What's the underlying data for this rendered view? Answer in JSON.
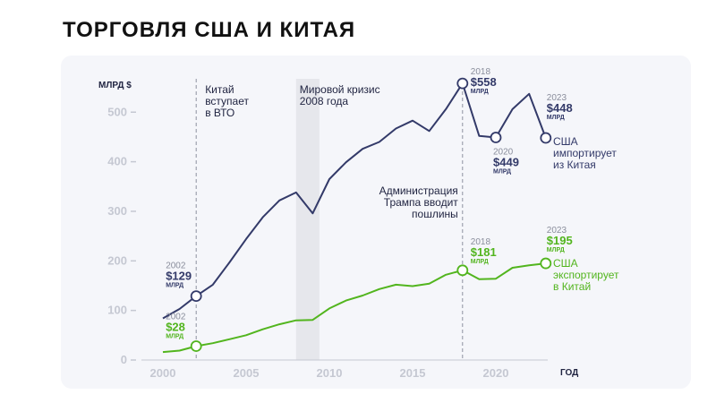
{
  "page_title": "ТОРГОВЛЯ США И КИТАЯ",
  "chart_data": {
    "type": "line",
    "title": "ТОРГОВЛЯ США И КИТАЯ",
    "ylabel": "МЛРД $",
    "xlabel": "ГОД",
    "xlim": [
      1999,
      2024
    ],
    "ylim": [
      0,
      560
    ],
    "yticks": [
      0,
      100,
      200,
      300,
      400,
      500
    ],
    "xticks": [
      2000,
      2005,
      2010,
      2015,
      2020
    ],
    "grid": false,
    "series": [
      {
        "name": "США импортирует из Китая",
        "color": "#333a69",
        "x": [
          2000,
          2001,
          2002,
          2003,
          2004,
          2005,
          2006,
          2007,
          2008,
          2009,
          2010,
          2011,
          2012,
          2013,
          2014,
          2015,
          2016,
          2017,
          2018,
          2019,
          2020,
          2021,
          2022,
          2023
        ],
        "values": [
          84,
          103,
          129,
          152,
          197,
          244,
          288,
          322,
          338,
          296,
          365,
          399,
          426,
          440,
          467,
          483,
          462,
          506,
          558,
          452,
          449,
          506,
          537,
          448
        ]
      },
      {
        "name": "США экспортирует в Китай",
        "color": "#52b51e",
        "x": [
          2000,
          2001,
          2002,
          2003,
          2004,
          2005,
          2006,
          2007,
          2008,
          2009,
          2010,
          2011,
          2012,
          2013,
          2014,
          2015,
          2016,
          2017,
          2018,
          2019,
          2020,
          2021,
          2022,
          2023
        ],
        "values": [
          16,
          19,
          28,
          34,
          42,
          50,
          62,
          72,
          80,
          81,
          104,
          120,
          130,
          143,
          152,
          149,
          154,
          172,
          181,
          163,
          164,
          186,
          191,
          195
        ]
      }
    ],
    "highlight_points": [
      {
        "series": 0,
        "year_label": "2002",
        "value_label": "$129",
        "unit_label": "МЛРД",
        "x": 2002,
        "y": 129
      },
      {
        "series": 0,
        "year_label": "2018",
        "value_label": "$558",
        "unit_label": "МЛРД",
        "x": 2018,
        "y": 558
      },
      {
        "series": 0,
        "year_label": "2020",
        "value_label": "$449",
        "unit_label": "МЛРД",
        "x": 2020,
        "y": 449
      },
      {
        "series": 0,
        "year_label": "2023",
        "value_label": "$448",
        "unit_label": "МЛРД",
        "x": 2023,
        "y": 448
      },
      {
        "series": 1,
        "year_label": "2002",
        "value_label": "$28",
        "unit_label": "МЛРД",
        "x": 2002,
        "y": 28
      },
      {
        "series": 1,
        "year_label": "2018",
        "value_label": "$181",
        "unit_label": "МЛРД",
        "x": 2018,
        "y": 181
      },
      {
        "series": 1,
        "year_label": "2023",
        "value_label": "$195",
        "unit_label": "МЛРД",
        "x": 2023,
        "y": 195
      }
    ],
    "events": [
      {
        "type": "line",
        "x": 2002,
        "label": [
          "Китай",
          "вступает",
          "в ВТО"
        ]
      },
      {
        "type": "band",
        "x_start": 2008,
        "x_end": 2009.4,
        "label": [
          "Мировой кризис",
          "2008 года"
        ]
      },
      {
        "type": "line",
        "x": 2018,
        "label": [
          "Администрация",
          "Трампа вводит",
          "пошлины"
        ]
      }
    ],
    "series_labels": [
      [
        "США",
        "импортирует",
        "из Китая"
      ],
      [
        "США",
        "экспортирует",
        "в Китай"
      ]
    ]
  }
}
